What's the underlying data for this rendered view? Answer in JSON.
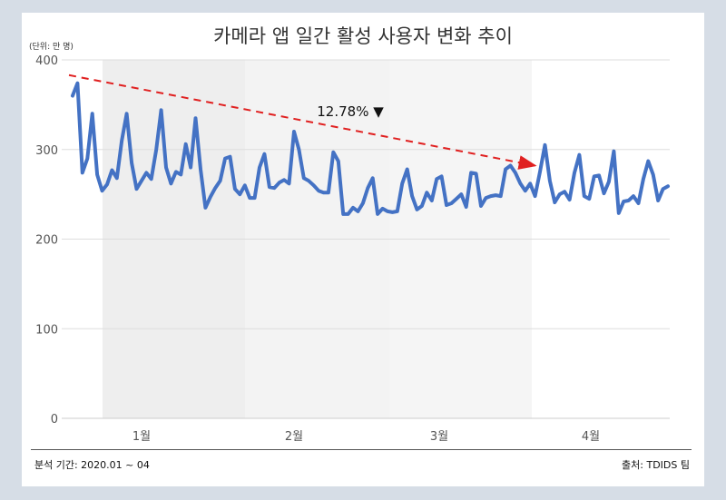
{
  "header": {
    "title": "카메라 앱 일간 활성 사용자 변화 추이",
    "unit": "(단위: 만 명)"
  },
  "footer": {
    "source_note": "분석 기간: 2020.01 ~ 04",
    "credit": "출처: TDIDS 팀"
  },
  "chart_data": {
    "type": "line",
    "title": "카메라 앱 일간 활성 사용자 변화 추이",
    "unit": "(단위: 만 명)",
    "ylim": [
      0,
      400
    ],
    "yticks": [
      "0",
      "100",
      "200",
      "300",
      "400"
    ],
    "x_tick_labels": [
      "1월",
      "2월",
      "3월",
      "4월"
    ],
    "grid": "horizontal",
    "shaded_months": [
      "1월",
      "2월",
      "3월"
    ],
    "series": [
      {
        "color": "#4472c4",
        "values": [
          360,
          374,
          274,
          290,
          340,
          272,
          254,
          261,
          277,
          268,
          310,
          340,
          285,
          256,
          265,
          274,
          267,
          300,
          344,
          280,
          262,
          275,
          272,
          306,
          280,
          335,
          278,
          235,
          247,
          257,
          265,
          290,
          292,
          256,
          250,
          260,
          246,
          246,
          280,
          295,
          258,
          257,
          263,
          266,
          262,
          320,
          300,
          268,
          265,
          260,
          254,
          252,
          252,
          297,
          287,
          228,
          228,
          235,
          231,
          240,
          257,
          268,
          228,
          234,
          231,
          230,
          231,
          262,
          278,
          248,
          233,
          237,
          252,
          243,
          267,
          270,
          238,
          240,
          245,
          250,
          236,
          274,
          273,
          237,
          246,
          248,
          249,
          248,
          278,
          282,
          274,
          262,
          254,
          262,
          248,
          275,
          305,
          265,
          241,
          250,
          253,
          244,
          274,
          294,
          248,
          245,
          270,
          271,
          251,
          264,
          298,
          229,
          242,
          243,
          248,
          240,
          267,
          287,
          272,
          243,
          256,
          259
        ]
      }
    ],
    "trend": {
      "label": "12.78% ▼",
      "color": "#e02020",
      "from": {
        "index": 0,
        "value": 383
      },
      "to": {
        "index": 94,
        "value": 282
      }
    }
  }
}
